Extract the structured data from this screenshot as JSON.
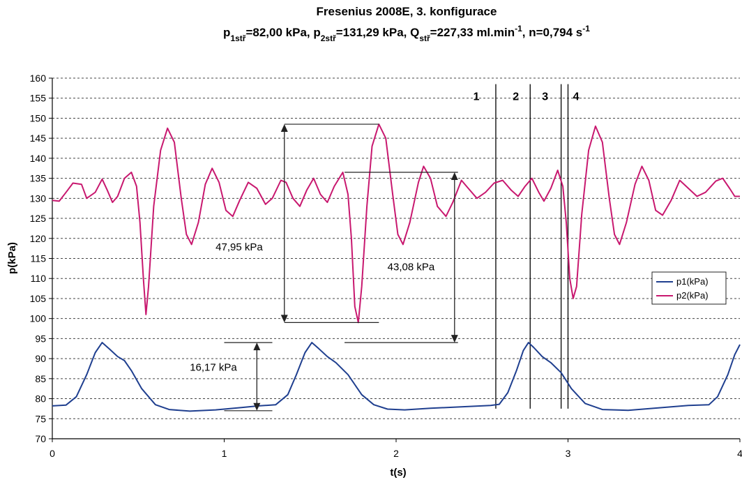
{
  "chart_data": {
    "type": "line",
    "title": "Fresenius 2008E, 3. konfigurace",
    "subtitle_parts": [
      {
        "text": "p",
        "sub": "1stř",
        "rest": "=82,00 kPa, "
      },
      {
        "text": "p",
        "sub": "2stř",
        "rest": "=131,29 kPa, "
      },
      {
        "text": "Q",
        "sub": "stř",
        "rest": "=227,33 ml.min"
      },
      {
        "text": "",
        "sup": "-1",
        "rest": ", n=0,794 s"
      },
      {
        "text": "",
        "sup": "-1",
        "rest": ""
      }
    ],
    "xlabel": "t(s)",
    "ylabel": "p(kPa)",
    "xlim": [
      0,
      4
    ],
    "ylim": [
      70,
      160
    ],
    "xticks": [
      "0",
      "1",
      "2",
      "3",
      "4"
    ],
    "yticks": [
      "70",
      "75",
      "80",
      "85",
      "90",
      "95",
      "100",
      "105",
      "110",
      "115",
      "120",
      "125",
      "130",
      "135",
      "140",
      "145",
      "150",
      "155",
      "160"
    ],
    "grid": "horizontal dashed",
    "legend_position": "right",
    "series": [
      {
        "name": "p1(kPa)",
        "color": "#1f3f8f",
        "points": [
          [
            0,
            78.2
          ],
          [
            0.08,
            78.4
          ],
          [
            0.14,
            80.5
          ],
          [
            0.2,
            86
          ],
          [
            0.25,
            91.5
          ],
          [
            0.29,
            94
          ],
          [
            0.33,
            92.5
          ],
          [
            0.38,
            90.5
          ],
          [
            0.42,
            89.5
          ],
          [
            0.46,
            87
          ],
          [
            0.52,
            82.5
          ],
          [
            0.6,
            78.5
          ],
          [
            0.68,
            77.3
          ],
          [
            0.8,
            76.9
          ],
          [
            0.95,
            77.2
          ],
          [
            1.1,
            77.8
          ],
          [
            1.2,
            78.2
          ],
          [
            1.3,
            78.5
          ],
          [
            1.37,
            81
          ],
          [
            1.42,
            86
          ],
          [
            1.47,
            91.5
          ],
          [
            1.51,
            94
          ],
          [
            1.55,
            92.5
          ],
          [
            1.6,
            90.5
          ],
          [
            1.65,
            89
          ],
          [
            1.72,
            86
          ],
          [
            1.8,
            81
          ],
          [
            1.87,
            78.5
          ],
          [
            1.95,
            77.4
          ],
          [
            2.05,
            77.2
          ],
          [
            2.2,
            77.6
          ],
          [
            2.4,
            78
          ],
          [
            2.55,
            78.3
          ],
          [
            2.6,
            78.6
          ],
          [
            2.65,
            81.5
          ],
          [
            2.7,
            87
          ],
          [
            2.74,
            92
          ],
          [
            2.77,
            94
          ],
          [
            2.8,
            92.8
          ],
          [
            2.85,
            90.5
          ],
          [
            2.9,
            89
          ],
          [
            2.96,
            86.5
          ],
          [
            3.02,
            82.5
          ],
          [
            3.1,
            78.8
          ],
          [
            3.2,
            77.3
          ],
          [
            3.35,
            77.1
          ],
          [
            3.5,
            77.6
          ],
          [
            3.7,
            78.3
          ],
          [
            3.82,
            78.5
          ],
          [
            3.87,
            80.5
          ],
          [
            3.93,
            86
          ],
          [
            3.97,
            91
          ],
          [
            4.0,
            93.5
          ]
        ]
      },
      {
        "name": "p2(kPa)",
        "color": "#c8186f",
        "points": [
          [
            0,
            129.5
          ],
          [
            0.04,
            129.3
          ],
          [
            0.08,
            131.5
          ],
          [
            0.12,
            133.8
          ],
          [
            0.17,
            133.5
          ],
          [
            0.2,
            130
          ],
          [
            0.25,
            131.5
          ],
          [
            0.29,
            134.8
          ],
          [
            0.32,
            132
          ],
          [
            0.35,
            129
          ],
          [
            0.38,
            130.5
          ],
          [
            0.42,
            135
          ],
          [
            0.46,
            136.5
          ],
          [
            0.49,
            133
          ],
          [
            0.51,
            124
          ],
          [
            0.53,
            110
          ],
          [
            0.545,
            101
          ],
          [
            0.56,
            108
          ],
          [
            0.59,
            128
          ],
          [
            0.63,
            142
          ],
          [
            0.67,
            147.5
          ],
          [
            0.71,
            144
          ],
          [
            0.75,
            130
          ],
          [
            0.78,
            121
          ],
          [
            0.81,
            118.5
          ],
          [
            0.85,
            124
          ],
          [
            0.89,
            133.5
          ],
          [
            0.93,
            137.5
          ],
          [
            0.97,
            134
          ],
          [
            1.01,
            127
          ],
          [
            1.05,
            125.5
          ],
          [
            1.09,
            129.5
          ],
          [
            1.14,
            134
          ],
          [
            1.19,
            132.5
          ],
          [
            1.24,
            128.5
          ],
          [
            1.28,
            130
          ],
          [
            1.33,
            134.5
          ],
          [
            1.36,
            134
          ],
          [
            1.4,
            130
          ],
          [
            1.44,
            128
          ],
          [
            1.48,
            132
          ],
          [
            1.52,
            135
          ],
          [
            1.56,
            131
          ],
          [
            1.6,
            129
          ],
          [
            1.64,
            133
          ],
          [
            1.69,
            136.5
          ],
          [
            1.72,
            131
          ],
          [
            1.74,
            120
          ],
          [
            1.76,
            103
          ],
          [
            1.78,
            99
          ],
          [
            1.8,
            108
          ],
          [
            1.83,
            128
          ],
          [
            1.86,
            143
          ],
          [
            1.9,
            148.5
          ],
          [
            1.94,
            145
          ],
          [
            1.98,
            131
          ],
          [
            2.01,
            121
          ],
          [
            2.04,
            118.5
          ],
          [
            2.08,
            124
          ],
          [
            2.13,
            134
          ],
          [
            2.16,
            138
          ],
          [
            2.2,
            135
          ],
          [
            2.24,
            128
          ],
          [
            2.29,
            125.5
          ],
          [
            2.33,
            129
          ],
          [
            2.38,
            134.5
          ],
          [
            2.42,
            132.5
          ],
          [
            2.47,
            130
          ],
          [
            2.52,
            131.5
          ],
          [
            2.57,
            133.8
          ],
          [
            2.62,
            134.5
          ],
          [
            2.67,
            132
          ],
          [
            2.71,
            130.5
          ],
          [
            2.75,
            133
          ],
          [
            2.79,
            135
          ],
          [
            2.83,
            131.5
          ],
          [
            2.86,
            129.3
          ],
          [
            2.9,
            132.5
          ],
          [
            2.94,
            137
          ],
          [
            2.97,
            133
          ],
          [
            2.99,
            124
          ],
          [
            3.01,
            110
          ],
          [
            3.03,
            105
          ],
          [
            3.05,
            108
          ],
          [
            3.08,
            126
          ],
          [
            3.12,
            142
          ],
          [
            3.16,
            148
          ],
          [
            3.2,
            144
          ],
          [
            3.24,
            130
          ],
          [
            3.27,
            121
          ],
          [
            3.3,
            118.5
          ],
          [
            3.34,
            124
          ],
          [
            3.39,
            133.5
          ],
          [
            3.43,
            138
          ],
          [
            3.47,
            134.5
          ],
          [
            3.51,
            127
          ],
          [
            3.55,
            125.8
          ],
          [
            3.6,
            129.5
          ],
          [
            3.65,
            134.5
          ],
          [
            3.7,
            132.5
          ],
          [
            3.75,
            130.5
          ],
          [
            3.8,
            131.5
          ],
          [
            3.86,
            134.3
          ],
          [
            3.9,
            135
          ],
          [
            3.94,
            132.5
          ],
          [
            3.97,
            130.5
          ],
          [
            4.0,
            130.5
          ]
        ]
      }
    ],
    "annotations": [
      {
        "label": "47,95 kPa",
        "x": 1.35,
        "y_from": 99,
        "y_to": 148.5,
        "ref_x1": 1.35,
        "ref_x2": 1.9,
        "text_x": 0.95,
        "text_y": 117
      },
      {
        "label": "43,08 kPa",
        "x": 2.34,
        "y_from": 94,
        "y_to": 136.5,
        "ref_x1": 1.7,
        "ref_x2": 2.36,
        "text_x": 1.95,
        "text_y": 112
      },
      {
        "label": "16,17 kPa",
        "x": 1.19,
        "y_from": 77,
        "y_to": 94,
        "ref_x1": 1.0,
        "ref_x2": 1.28,
        "text_x": 0.8,
        "text_y": 87
      }
    ],
    "vertical_markers": [
      {
        "label": "1",
        "x": 2.58,
        "label_x": 2.41
      },
      {
        "label": "2",
        "x": 2.78,
        "label_x": 2.64
      },
      {
        "label": "3",
        "x": 2.96,
        "label_x": 2.81
      },
      {
        "label": "4",
        "x": 3.0,
        "label_x": 2.99
      }
    ]
  }
}
